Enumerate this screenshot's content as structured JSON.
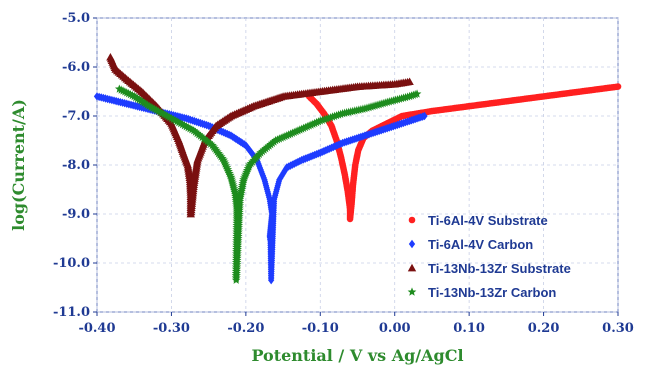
{
  "chart_data": {
    "type": "scatter",
    "title": "",
    "xlabel": "Potential / V vs Ag/AgCl",
    "ylabel": "log(Current/A)",
    "xlim": [
      -0.4,
      0.3
    ],
    "ylim": [
      -11.0,
      -5.0
    ],
    "x_ticks": [
      "-0.40",
      "-0.30",
      "-0.20",
      "-0.10",
      "0.00",
      "0.10",
      "0.20",
      "0.30"
    ],
    "y_ticks": [
      "-5.0",
      "-6.0",
      "-7.0",
      "-8.0",
      "-9.0",
      "-10.0",
      "-11.0"
    ],
    "x_tick_values": [
      -0.4,
      -0.3,
      -0.2,
      -0.1,
      0.0,
      0.1,
      0.2,
      0.3
    ],
    "y_tick_values": [
      -5.0,
      -6.0,
      -7.0,
      -8.0,
      -9.0,
      -10.0,
      -11.0
    ],
    "grid": true,
    "legend_position": "bottom-right",
    "series": [
      {
        "name": "Ti-6Al-4V Substrate",
        "color": "#ff2020",
        "marker": "circle",
        "points": [
          [
            -0.115,
            -6.6
          ],
          [
            -0.105,
            -6.75
          ],
          [
            -0.095,
            -6.95
          ],
          [
            -0.085,
            -7.2
          ],
          [
            -0.078,
            -7.5
          ],
          [
            -0.072,
            -7.85
          ],
          [
            -0.067,
            -8.2
          ],
          [
            -0.063,
            -8.55
          ],
          [
            -0.06,
            -8.9
          ],
          [
            -0.06,
            -9.1
          ],
          [
            -0.058,
            -8.8
          ],
          [
            -0.056,
            -8.4
          ],
          [
            -0.053,
            -8.0
          ],
          [
            -0.049,
            -7.7
          ],
          [
            -0.042,
            -7.45
          ],
          [
            -0.03,
            -7.3
          ],
          [
            -0.01,
            -7.15
          ],
          [
            0.01,
            -7.0
          ],
          [
            0.05,
            -6.9
          ],
          [
            0.1,
            -6.8
          ],
          [
            0.15,
            -6.7
          ],
          [
            0.2,
            -6.6
          ],
          [
            0.25,
            -6.5
          ],
          [
            0.3,
            -6.4
          ]
        ]
      },
      {
        "name": "Ti-6Al-4V Carbon",
        "color": "#1e3cff",
        "marker": "diamond",
        "points": [
          [
            -0.4,
            -6.6
          ],
          [
            -0.36,
            -6.75
          ],
          [
            -0.32,
            -6.9
          ],
          [
            -0.28,
            -7.05
          ],
          [
            -0.25,
            -7.2
          ],
          [
            -0.22,
            -7.4
          ],
          [
            -0.2,
            -7.6
          ],
          [
            -0.185,
            -7.9
          ],
          [
            -0.175,
            -8.3
          ],
          [
            -0.168,
            -8.7
          ],
          [
            -0.165,
            -9.0
          ],
          [
            -0.168,
            -9.45
          ],
          [
            -0.167,
            -9.55
          ],
          [
            -0.166,
            -10.35
          ],
          [
            -0.162,
            -8.7
          ],
          [
            -0.155,
            -8.3
          ],
          [
            -0.145,
            -8.05
          ],
          [
            -0.125,
            -7.9
          ],
          [
            -0.1,
            -7.75
          ],
          [
            -0.07,
            -7.55
          ],
          [
            -0.04,
            -7.4
          ],
          [
            -0.01,
            -7.25
          ],
          [
            0.02,
            -7.1
          ],
          [
            0.04,
            -7.0
          ]
        ]
      },
      {
        "name": "Ti-13Nb-13Zr Substrate",
        "color": "#7a1010",
        "marker": "triangle",
        "points": [
          [
            -0.382,
            -5.8
          ],
          [
            -0.375,
            -6.05
          ],
          [
            -0.36,
            -6.25
          ],
          [
            -0.34,
            -6.5
          ],
          [
            -0.32,
            -6.8
          ],
          [
            -0.3,
            -7.15
          ],
          [
            -0.29,
            -7.5
          ],
          [
            -0.283,
            -7.8
          ],
          [
            -0.278,
            -8.0
          ],
          [
            -0.275,
            -8.3
          ],
          [
            -0.274,
            -8.6
          ],
          [
            -0.274,
            -9.0
          ],
          [
            -0.27,
            -8.4
          ],
          [
            -0.265,
            -7.9
          ],
          [
            -0.255,
            -7.5
          ],
          [
            -0.24,
            -7.2
          ],
          [
            -0.22,
            -7.0
          ],
          [
            -0.19,
            -6.8
          ],
          [
            -0.15,
            -6.6
          ],
          [
            -0.1,
            -6.5
          ],
          [
            -0.05,
            -6.4
          ],
          [
            0.0,
            -6.35
          ],
          [
            0.02,
            -6.3
          ]
        ]
      },
      {
        "name": "Ti-13Nb-13Zr Carbon",
        "color": "#1e8c1e",
        "marker": "star",
        "points": [
          [
            -0.37,
            -6.45
          ],
          [
            -0.35,
            -6.6
          ],
          [
            -0.33,
            -6.8
          ],
          [
            -0.3,
            -7.05
          ],
          [
            -0.27,
            -7.3
          ],
          [
            -0.245,
            -7.6
          ],
          [
            -0.23,
            -7.9
          ],
          [
            -0.22,
            -8.25
          ],
          [
            -0.214,
            -8.6
          ],
          [
            -0.212,
            -8.9
          ],
          [
            -0.212,
            -9.1
          ],
          [
            -0.213,
            -10.35
          ],
          [
            -0.208,
            -8.7
          ],
          [
            -0.203,
            -8.3
          ],
          [
            -0.195,
            -8.0
          ],
          [
            -0.18,
            -7.75
          ],
          [
            -0.16,
            -7.5
          ],
          [
            -0.13,
            -7.3
          ],
          [
            -0.1,
            -7.1
          ],
          [
            -0.07,
            -6.95
          ],
          [
            -0.04,
            -6.85
          ],
          [
            -0.01,
            -6.72
          ],
          [
            0.02,
            -6.6
          ],
          [
            0.03,
            -6.55
          ]
        ]
      }
    ]
  }
}
